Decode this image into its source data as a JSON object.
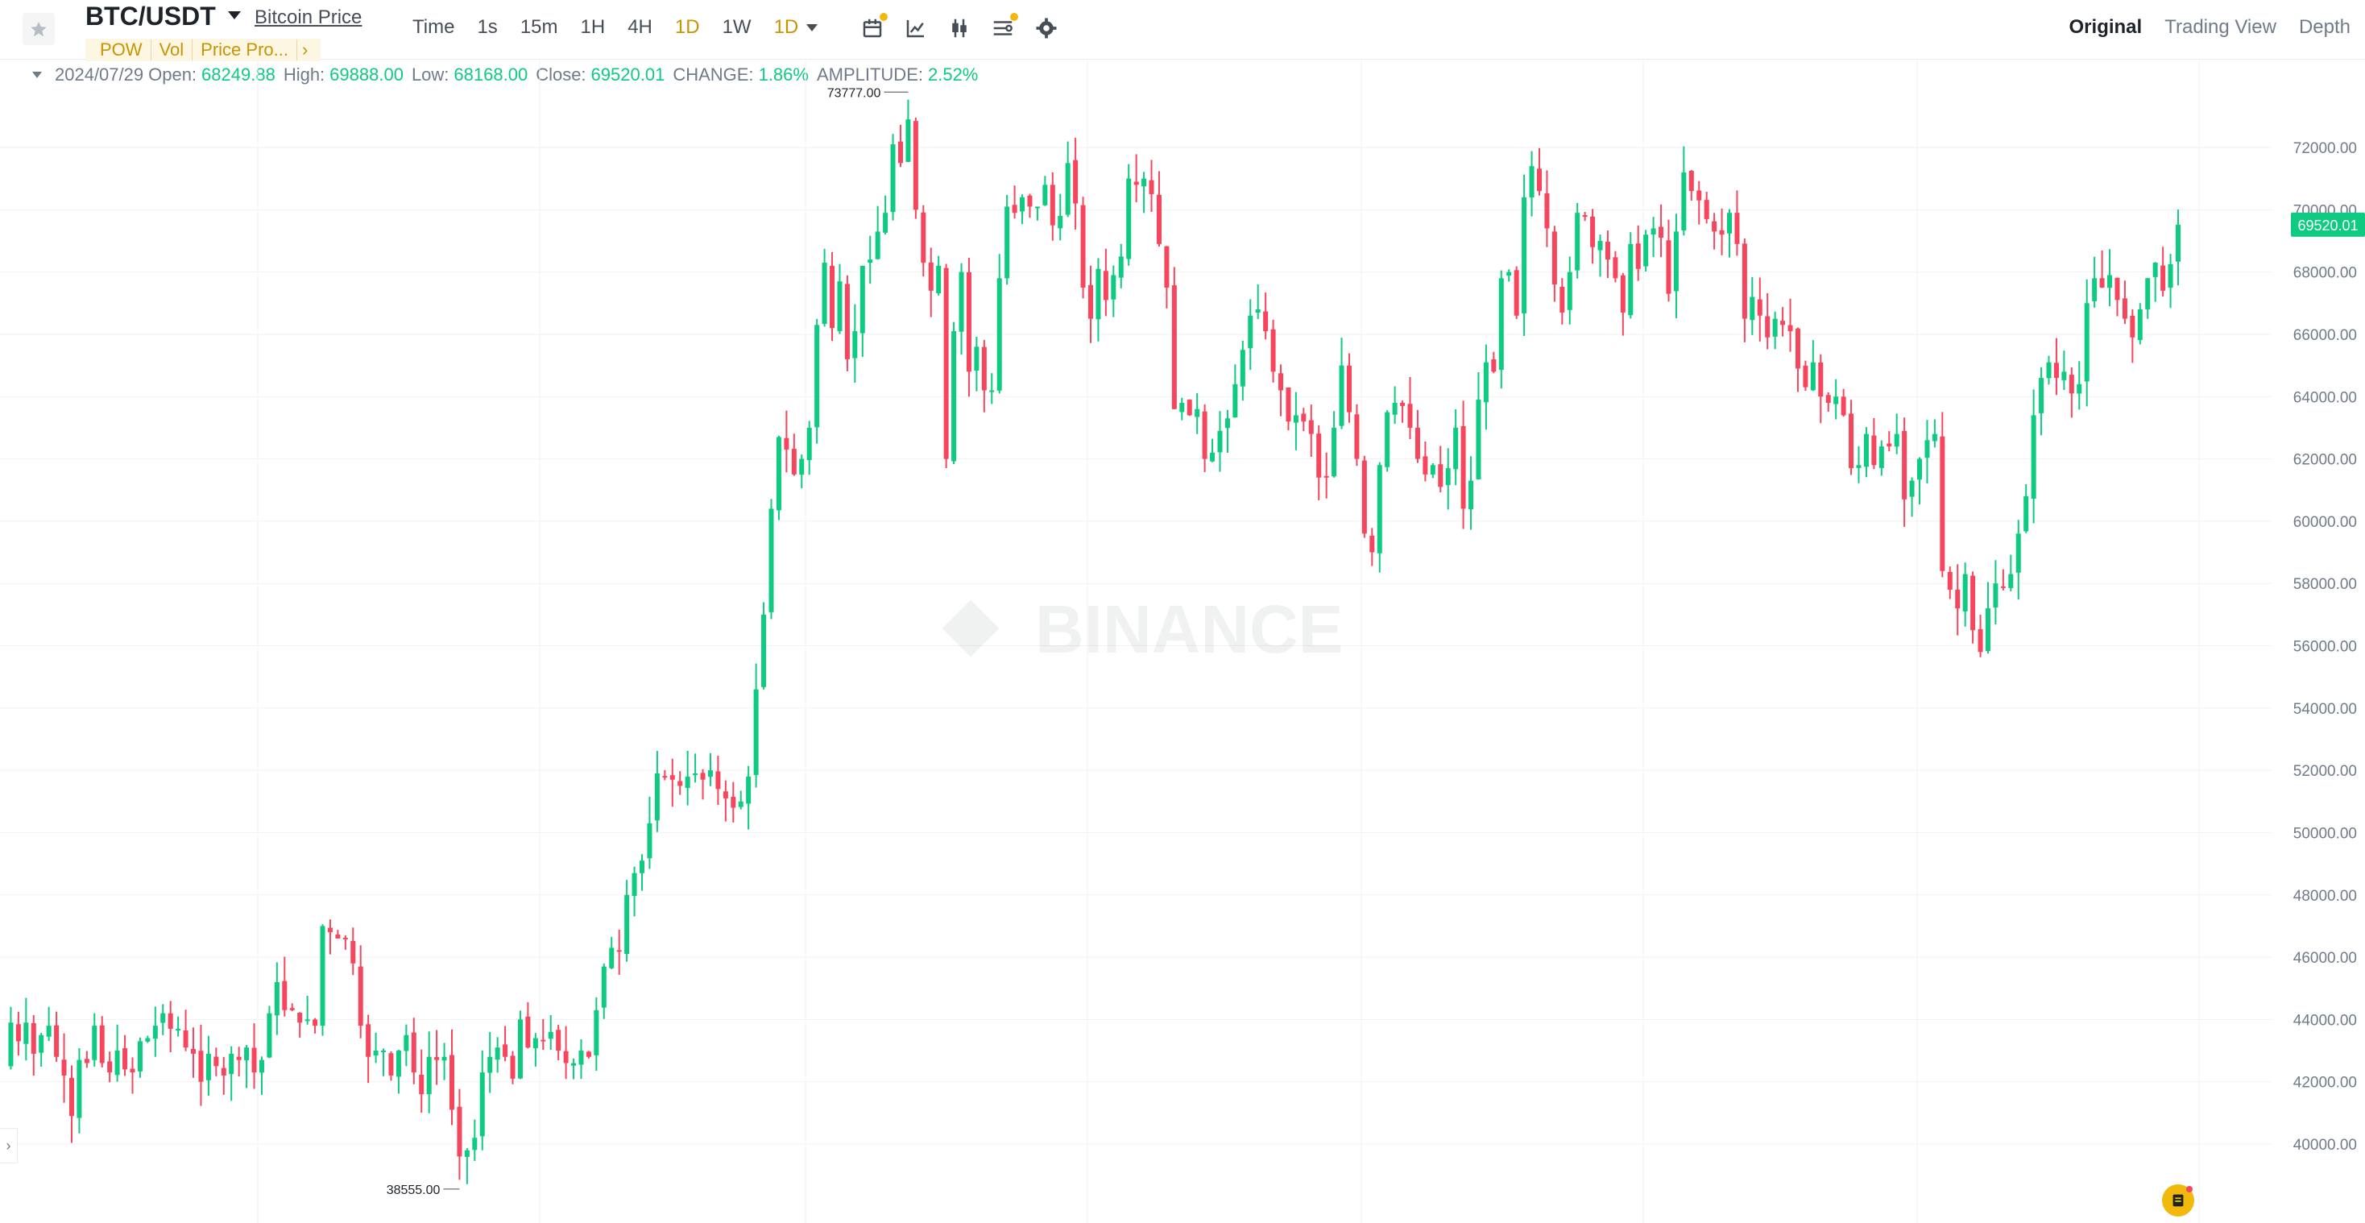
{
  "header": {
    "symbol": "BTC/USDT",
    "link": "Bitcoin Price",
    "tags": [
      "POW",
      "Vol",
      "Price Pro..."
    ],
    "intervals": [
      "Time",
      "1s",
      "15m",
      "1H",
      "4H",
      "1D",
      "1W"
    ],
    "selected_interval": "1D",
    "views": [
      "Original",
      "Trading View",
      "Depth"
    ],
    "active_view": "Original",
    "icons": [
      "calendar-icon",
      "line-chart-icon",
      "candle-type-icon",
      "indicator-icon",
      "settings-icon"
    ]
  },
  "ohlc": {
    "date": "2024/07/29",
    "open_label": "Open:",
    "open": "68249.88",
    "high_label": "High:",
    "high": "69888.00",
    "low_label": "Low:",
    "low": "68168.00",
    "close_label": "Close:",
    "close": "69520.01",
    "change_label": "CHANGE:",
    "change": "1.86%",
    "amplitude_label": "AMPLITUDE:",
    "amplitude": "2.52%"
  },
  "watermark": "BINANCE",
  "colors": {
    "up": "#0ecb81",
    "down": "#f6465d",
    "accent": "#f0b90b",
    "grid": "#f0f1f2"
  },
  "chart_data": {
    "type": "candlestick",
    "y_axis_ticks": [
      40000,
      42000,
      44000,
      46000,
      48000,
      50000,
      52000,
      54000,
      56000,
      58000,
      60000,
      62000,
      64000,
      66000,
      68000,
      70000,
      72000
    ],
    "y_tick_labels": [
      "40000.00",
      "42000.00",
      "44000.00",
      "46000.00",
      "48000.00",
      "50000.00",
      "52000.00",
      "54000.00",
      "56000.00",
      "58000.00",
      "60000.00",
      "62000.00",
      "64000.00",
      "66000.00",
      "68000.00",
      "70000.00",
      "72000.00"
    ],
    "ylim": [
      38800,
      74200
    ],
    "last_price_label": "69520.01",
    "max_label": "73777.00",
    "min_label": "38555.00",
    "close_series": [
      42500,
      43900,
      43300,
      43900,
      42900,
      43500,
      43800,
      42800,
      42200,
      40900,
      42700,
      42600,
      43800,
      42600,
      42300,
      43000,
      42400,
      42300,
      43300,
      43400,
      43800,
      44200,
      43700,
      43700,
      43100,
      42900,
      42000,
      42900,
      42500,
      42200,
      42900,
      42700,
      43100,
      42300,
      42700,
      44200,
      45200,
      44300,
      44300,
      43900,
      44000,
      43800,
      47000,
      46800,
      46600,
      46600,
      45800,
      43800,
      42800,
      43000,
      43000,
      42200,
      43000,
      43500,
      42300,
      41600,
      42800,
      42700,
      42800,
      41100,
      39600,
      39800,
      40200,
      42300,
      42800,
      43100,
      42800,
      42100,
      44000,
      43100,
      43400,
      43300,
      43600,
      43000,
      42600,
      42600,
      43000,
      42800,
      44300,
      45700,
      46300,
      46200,
      48000,
      48700,
      49100,
      50300,
      51900,
      51800,
      51700,
      51500,
      51800,
      51900,
      51700,
      52000,
      51400,
      51100,
      50800,
      51000,
      51800,
      54600,
      57000,
      60400,
      62700,
      62300,
      61500,
      62000,
      63000,
      66300,
      68300,
      66200,
      67700,
      65200,
      66100,
      68200,
      68400,
      69300,
      69900,
      72100,
      71500,
      72900,
      70000,
      68300,
      67400,
      68200,
      62000,
      66100,
      68000,
      64800,
      65600,
      64200,
      64200,
      67800,
      70100,
      69900,
      70400,
      70100,
      70100,
      70800,
      69500,
      69800,
      71500,
      70200,
      67500,
      66500,
      68100,
      67100,
      67900,
      68500,
      71000,
      70800,
      71000,
      70500,
      68900,
      67500,
      63600,
      63800,
      63400,
      63600,
      62000,
      62200,
      62900,
      63300,
      64400,
      65500,
      66600,
      66800,
      66100,
      64800,
      64200,
      63200,
      63400,
      63200,
      62800,
      61400,
      61400,
      63000,
      65000,
      63500,
      62000,
      59600,
      59000,
      61800,
      63500,
      63800,
      63700,
      63000,
      62000,
      61500,
      61800,
      61100,
      61700,
      63000,
      60400,
      61300,
      63900,
      65100,
      64800,
      67800,
      68000,
      66600,
      70400,
      71400,
      70600,
      69400,
      67600,
      66700,
      68000,
      69900,
      69800,
      68800,
      69000,
      68400,
      67800,
      66700,
      68900,
      68100,
      69200,
      69400,
      69100,
      67300,
      69300,
      71200,
      70600,
      70300,
      69700,
      69300,
      69200,
      69900,
      68900,
      66500,
      67200,
      66600,
      65900,
      66500,
      66300,
      66100,
      64900,
      64300,
      65100,
      64000,
      63800,
      64000,
      63400,
      61700,
      61800,
      62800,
      61800,
      62400,
      62400,
      62800,
      60700,
      61300,
      62000,
      62600,
      62800,
      58400,
      57800,
      57200,
      58300,
      56500,
      55800,
      57200,
      58000,
      57900,
      58300,
      59600,
      60800,
      63400,
      64600,
      65100,
      64600,
      64800,
      64100,
      64400,
      67000,
      67800,
      67500,
      67900,
      67100,
      66500,
      65900,
      66800,
      67800,
      68300,
      67400,
      68250,
      69520
    ]
  }
}
